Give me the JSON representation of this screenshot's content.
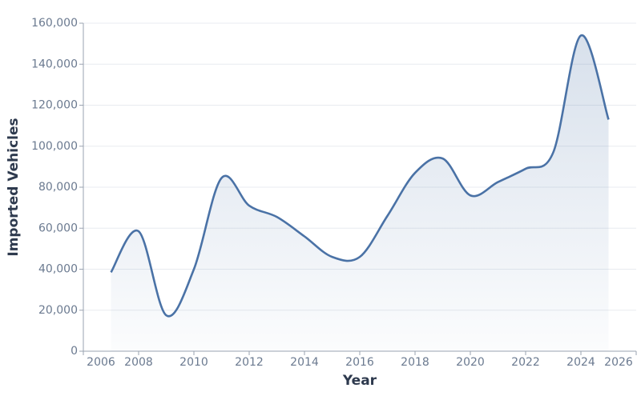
{
  "chart_data": {
    "type": "line",
    "x_label": "Year",
    "y_label": "Imported Vehicles",
    "x": [
      2007,
      2008,
      2009,
      2010,
      2011,
      2012,
      2013,
      2014,
      2015,
      2016,
      2017,
      2018,
      2019,
      2020,
      2021,
      2022,
      2023,
      2024,
      2025
    ],
    "series": [
      {
        "name": "Imported Vehicles",
        "color": "#4a72a6",
        "values": [
          38500,
          58500,
          17500,
          40000,
          84500,
          71000,
          65500,
          56000,
          46000,
          46000,
          66000,
          87000,
          94000,
          76000,
          82500,
          89000,
          97000,
          154000,
          113000
        ]
      }
    ],
    "xlim": [
      2006,
      2026
    ],
    "xticks": [
      2006,
      2008,
      2010,
      2012,
      2014,
      2016,
      2018,
      2020,
      2022,
      2024,
      2026
    ],
    "ylim": [
      0,
      160000
    ],
    "yticks": [
      0,
      {
        "value": 20000,
        "label": "20,000"
      },
      {
        "value": 40000,
        "label": "40,000"
      },
      {
        "value": 60000,
        "label": "60,000"
      },
      {
        "value": 80000,
        "label": "80,000"
      },
      {
        "value": 100000,
        "label": "100,000"
      },
      {
        "value": 120000,
        "label": "120,000"
      },
      {
        "value": 140000,
        "label": "140,000"
      },
      {
        "value": 160000,
        "label": "160,000"
      }
    ],
    "grid": true,
    "area_fill": true
  }
}
